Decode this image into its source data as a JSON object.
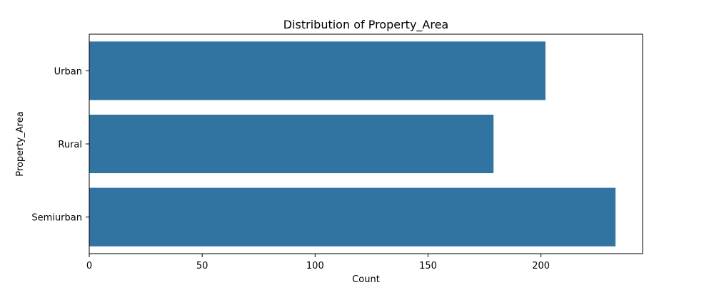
{
  "chart_data": {
    "type": "bar",
    "orientation": "horizontal",
    "title": "Distribution of Property_Area",
    "xlabel": "Count",
    "ylabel": "Property_Area",
    "categories": [
      "Urban",
      "Rural",
      "Semiurban"
    ],
    "values": [
      202,
      179,
      233
    ],
    "xlim": [
      0,
      245
    ],
    "xticks": [
      0,
      50,
      100,
      150,
      200
    ],
    "xtick_labels": [
      "0",
      "50",
      "100",
      "150",
      "200"
    ],
    "bar_color": "#3274a1",
    "grid": false,
    "legend": "none"
  }
}
